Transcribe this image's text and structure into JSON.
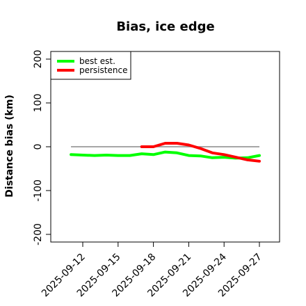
{
  "chart_data": {
    "type": "line",
    "title": "Bias, ice edge",
    "xlabel": "",
    "ylabel": "Distance bias (km)",
    "ylim": [
      -215,
      215
    ],
    "xlim": [
      "2025-09-10",
      "2025-09-27"
    ],
    "x_ticks": [
      "2025-09-12",
      "2025-09-15",
      "2025-09-18",
      "2025-09-21",
      "2025-09-24",
      "2025-09-27"
    ],
    "y_ticks": [
      -200,
      -100,
      0,
      100,
      200
    ],
    "reference_line": {
      "y": 0,
      "from": "2025-09-11",
      "to": "2025-09-27",
      "color": "#888888"
    },
    "legend_position": "top-left",
    "grid": false,
    "series": [
      {
        "name": "best est.",
        "color": "#00ff00",
        "x": [
          "2025-09-11",
          "2025-09-12",
          "2025-09-13",
          "2025-09-14",
          "2025-09-15",
          "2025-09-16",
          "2025-09-17",
          "2025-09-18",
          "2025-09-19",
          "2025-09-20",
          "2025-09-21",
          "2025-09-22",
          "2025-09-23",
          "2025-09-24",
          "2025-09-25",
          "2025-09-26",
          "2025-09-27"
        ],
        "values": [
          -18,
          -19,
          -20,
          -19,
          -20,
          -20,
          -16,
          -18,
          -12,
          -14,
          -20,
          -21,
          -25,
          -24,
          -26,
          -25,
          -20
        ]
      },
      {
        "name": "persistence",
        "color": "#ff0000",
        "x": [
          "2025-09-17",
          "2025-09-18",
          "2025-09-19",
          "2025-09-20",
          "2025-09-21",
          "2025-09-22",
          "2025-09-23",
          "2025-09-24",
          "2025-09-25",
          "2025-09-26",
          "2025-09-27"
        ],
        "values": [
          0,
          0,
          8,
          8,
          4,
          -4,
          -14,
          -18,
          -24,
          -30,
          -33
        ]
      }
    ]
  }
}
